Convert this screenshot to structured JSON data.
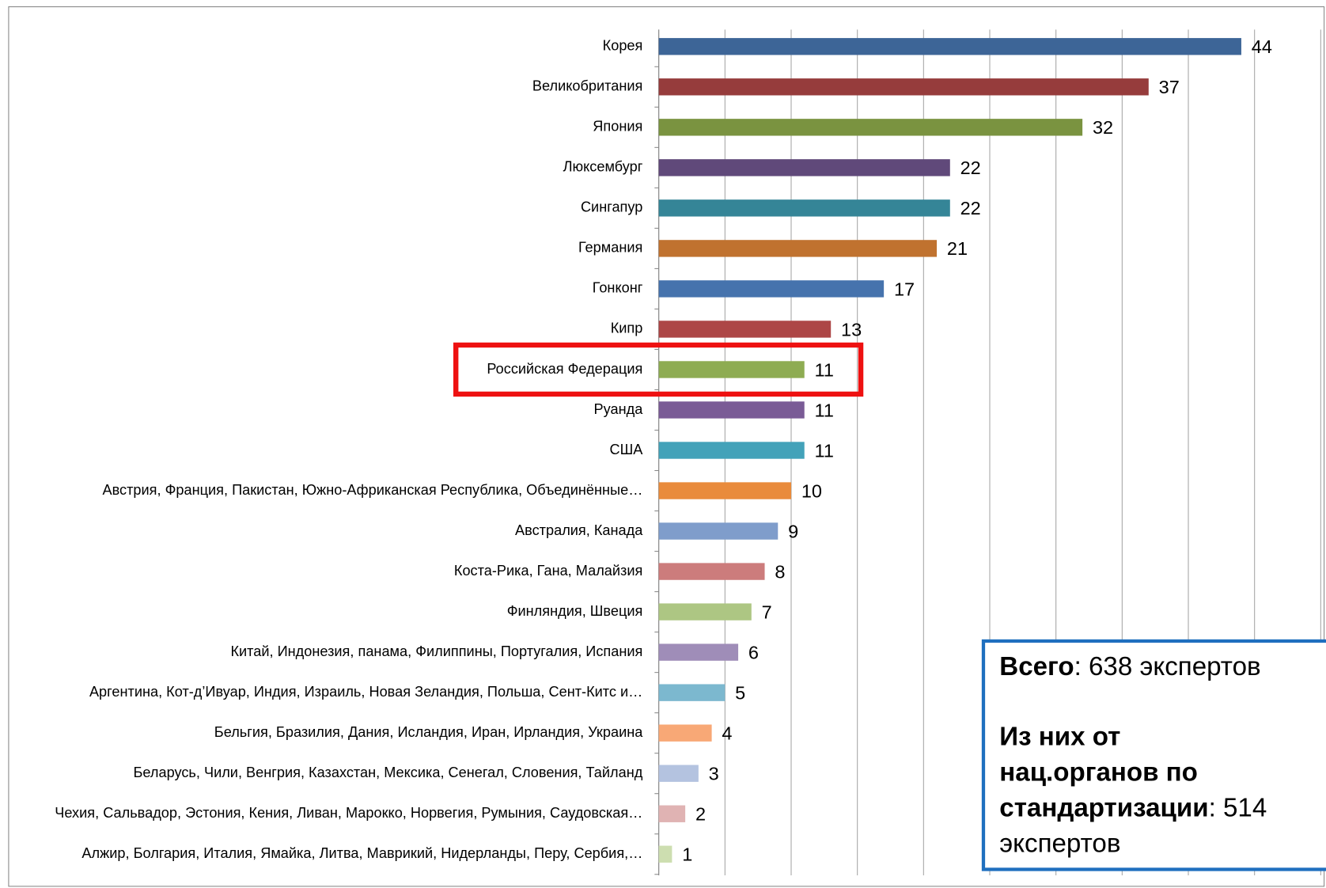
{
  "chart_data": {
    "type": "barh",
    "categories": [
      "Корея",
      "Великобритания",
      "Япония",
      "Люксембург",
      "Сингапур",
      "Германия",
      "Гонконг",
      "Кипр",
      "Российская Федерация",
      "Руанда",
      "США",
      "Австрия, Франция, Пакистан, Южно-Африканская Республика, Объединённые…",
      "Австралия, Канада",
      "Коста-Рика, Гана, Малайзия",
      "Финляндия, Швеция",
      "Китай, Индонезия, панама, Филиппины, Португалия, Испания",
      "Аргентина, Кот-д’Ивуар, Индия, Израиль, Новая Зеландия, Польша, Сент-Китс и…",
      "Бельгия, Бразилия, Дания, Исландия, Иран, Ирландия, Украина",
      "Беларусь, Чили, Венгрия, Казахстан, Мексика, Сенегал, Словения, Тайланд",
      "Чехия, Сальвадор, Эстония, Кения, Ливан, Марокко, Норвегия, Румыния, Саудовская…",
      "Алжир, Болгария, Италия, Ямайка, Литва, Маврикий, Нидерланды, Перу, Сербия,…"
    ],
    "values": [
      44,
      37,
      32,
      22,
      22,
      21,
      17,
      13,
      11,
      11,
      11,
      10,
      9,
      8,
      7,
      6,
      5,
      4,
      3,
      2,
      1
    ],
    "colors": [
      "#3d6597",
      "#963c3c",
      "#7a9340",
      "#60497a",
      "#358597",
      "#c0722f",
      "#4673ad",
      "#ad4646",
      "#8eac52",
      "#7a5b96",
      "#43a2b9",
      "#e98b3c",
      "#7f9dcb",
      "#cc7c7c",
      "#adc683",
      "#9f8db8",
      "#7cb8cf",
      "#f8a876",
      "#b4c3e0",
      "#e0b3b3",
      "#cddeb0"
    ],
    "xlim": [
      0,
      50
    ],
    "xticks": [
      0,
      5,
      10,
      15,
      20,
      25,
      30,
      35,
      40,
      45,
      50
    ],
    "grid": true,
    "highlight": "Российская Федерация",
    "note": {
      "total_label": "Всего",
      "total_text": ": 638 экспертов",
      "national_lines": [
        "Из них от",
        "нац.органов по",
        "стандартизации"
      ],
      "national_value": ": 514",
      "national_tail": "экспертов"
    }
  }
}
